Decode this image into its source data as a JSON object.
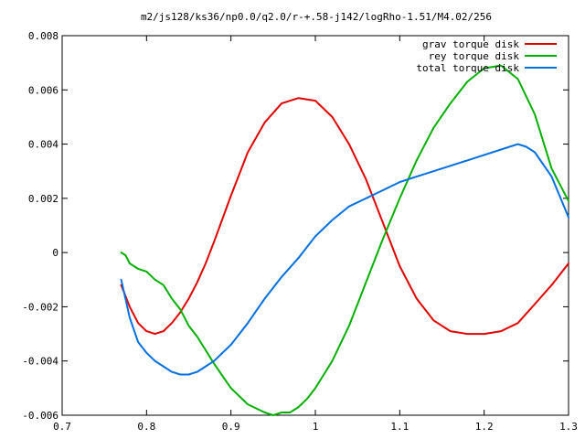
{
  "chart_data": {
    "type": "line",
    "title": "m2/js128/ks36/np0.0/q2.0/r-+.58-j142/logRho-1.51/M4.02/256",
    "xlabel": "",
    "ylabel": "",
    "xlim": [
      0.7,
      1.3
    ],
    "ylim": [
      -0.006,
      0.008
    ],
    "x_ticks": [
      "0.7",
      "0.8",
      "0.9",
      "1",
      "1.1",
      "1.2",
      "1.3"
    ],
    "x_tick_values": [
      0.7,
      0.8,
      0.9,
      1.0,
      1.1,
      1.2,
      1.3
    ],
    "y_ticks": [
      "-0.006",
      "-0.004",
      "-0.002",
      "0",
      "0.002",
      "0.004",
      "0.006",
      "0.008"
    ],
    "y_tick_values": [
      -0.006,
      -0.004,
      -0.002,
      0,
      0.002,
      0.004,
      0.006,
      0.008
    ],
    "grid": false,
    "legend_position": "top-right",
    "series": [
      {
        "name": "grav torque disk",
        "color": "#e00000",
        "x": [
          0.77,
          0.78,
          0.79,
          0.8,
          0.81,
          0.82,
          0.83,
          0.84,
          0.85,
          0.86,
          0.87,
          0.88,
          0.9,
          0.92,
          0.94,
          0.96,
          0.98,
          1.0,
          1.02,
          1.04,
          1.06,
          1.08,
          1.1,
          1.12,
          1.14,
          1.16,
          1.18,
          1.2,
          1.22,
          1.24,
          1.26,
          1.28,
          1.3
        ],
        "values": [
          -0.0012,
          -0.002,
          -0.0026,
          -0.0029,
          -0.003,
          -0.0029,
          -0.0026,
          -0.0022,
          -0.0017,
          -0.0011,
          -0.0004,
          0.0004,
          0.0021,
          0.0037,
          0.0048,
          0.0055,
          0.0057,
          0.0056,
          0.005,
          0.004,
          0.0027,
          0.0011,
          -0.0005,
          -0.0017,
          -0.0025,
          -0.0029,
          -0.003,
          -0.003,
          -0.0029,
          -0.0026,
          -0.0019,
          -0.0012,
          -0.0004
        ]
      },
      {
        "name": "rey torque disk",
        "color": "#00b000",
        "x": [
          0.77,
          0.775,
          0.78,
          0.79,
          0.8,
          0.81,
          0.82,
          0.83,
          0.84,
          0.85,
          0.86,
          0.87,
          0.88,
          0.9,
          0.92,
          0.94,
          0.95,
          0.96,
          0.97,
          0.98,
          0.99,
          1.0,
          1.02,
          1.04,
          1.06,
          1.08,
          1.1,
          1.12,
          1.14,
          1.16,
          1.18,
          1.2,
          1.22,
          1.24,
          1.26,
          1.28,
          1.3
        ],
        "values": [
          0.0,
          -0.0001,
          -0.0004,
          -0.0006,
          -0.0007,
          -0.001,
          -0.0012,
          -0.0017,
          -0.0021,
          -0.0027,
          -0.0031,
          -0.0036,
          -0.0041,
          -0.005,
          -0.0056,
          -0.0059,
          -0.006,
          -0.0059,
          -0.0059,
          -0.0057,
          -0.0054,
          -0.005,
          -0.004,
          -0.0027,
          -0.0011,
          0.0005,
          0.002,
          0.0034,
          0.0046,
          0.0055,
          0.0063,
          0.0068,
          0.0069,
          0.0064,
          0.0051,
          0.0031,
          0.0019
        ]
      },
      {
        "name": "total torque disk",
        "color": "#0070e0",
        "x": [
          0.77,
          0.78,
          0.79,
          0.8,
          0.81,
          0.82,
          0.83,
          0.84,
          0.85,
          0.86,
          0.87,
          0.88,
          0.9,
          0.92,
          0.94,
          0.96,
          0.98,
          1.0,
          1.02,
          1.04,
          1.06,
          1.08,
          1.1,
          1.12,
          1.14,
          1.16,
          1.18,
          1.2,
          1.22,
          1.24,
          1.25,
          1.26,
          1.28,
          1.3
        ],
        "values": [
          -0.001,
          -0.0024,
          -0.0033,
          -0.0037,
          -0.004,
          -0.0042,
          -0.0044,
          -0.0045,
          -0.0045,
          -0.0044,
          -0.0042,
          -0.004,
          -0.0034,
          -0.0026,
          -0.0017,
          -0.0009,
          -0.0002,
          0.0006,
          0.0012,
          0.0017,
          0.002,
          0.0023,
          0.0026,
          0.0028,
          0.003,
          0.0032,
          0.0034,
          0.0036,
          0.0038,
          0.004,
          0.0039,
          0.0037,
          0.0028,
          0.0013
        ]
      }
    ]
  }
}
